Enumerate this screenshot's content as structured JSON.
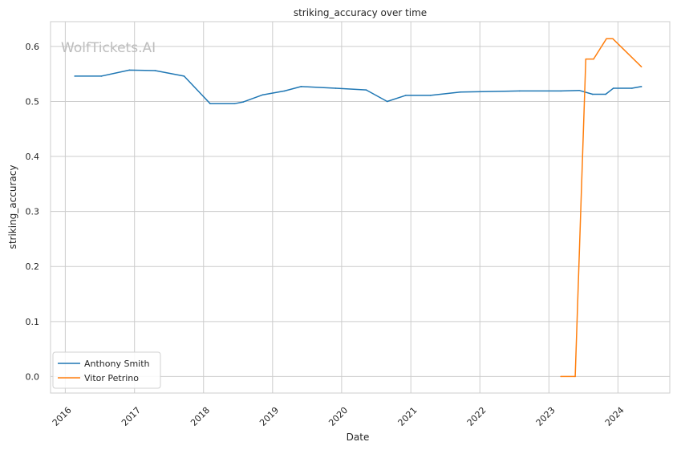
{
  "watermark": "WolfTickets.AI",
  "chart_data": {
    "type": "line",
    "title": "striking_accuracy over time",
    "xlabel": "Date",
    "ylabel": "striking_accuracy",
    "x_ticks": [
      "2016",
      "2017",
      "2018",
      "2019",
      "2020",
      "2021",
      "2022",
      "2023",
      "2024"
    ],
    "y_ticks": [
      "0.0",
      "0.1",
      "0.2",
      "0.3",
      "0.4",
      "0.5",
      "0.6"
    ],
    "xlim": [
      "2015-10-15",
      "2024-10-01"
    ],
    "ylim": [
      -0.03,
      0.645
    ],
    "grid": true,
    "legend_position": "bottom-left",
    "series": [
      {
        "name": "Anthony Smith",
        "color": "#1f77b4",
        "points": [
          [
            "2016-02-20",
            0.546
          ],
          [
            "2016-07-10",
            0.546
          ],
          [
            "2016-12-05",
            0.557
          ],
          [
            "2017-04-20",
            0.556
          ],
          [
            "2017-09-20",
            0.546
          ],
          [
            "2018-02-05",
            0.496
          ],
          [
            "2018-06-15",
            0.496
          ],
          [
            "2018-07-30",
            0.499
          ],
          [
            "2018-11-10",
            0.512
          ],
          [
            "2019-03-05",
            0.519
          ],
          [
            "2019-06-01",
            0.527
          ],
          [
            "2019-12-01",
            0.524
          ],
          [
            "2020-05-10",
            0.521
          ],
          [
            "2020-08-29",
            0.5
          ],
          [
            "2020-12-05",
            0.511
          ],
          [
            "2021-04-15",
            0.511
          ],
          [
            "2021-09-20",
            0.517
          ],
          [
            "2022-07-30",
            0.519
          ],
          [
            "2023-03-05",
            0.519
          ],
          [
            "2023-06-10",
            0.52
          ],
          [
            "2023-08-20",
            0.513
          ],
          [
            "2023-10-28",
            0.513
          ],
          [
            "2023-12-08",
            0.524
          ],
          [
            "2024-03-15",
            0.524
          ],
          [
            "2024-05-04",
            0.527
          ]
        ]
      },
      {
        "name": "Vitor Petrino",
        "color": "#ff7f0e",
        "points": [
          [
            "2023-03-05",
            0.0
          ],
          [
            "2023-05-20",
            0.0
          ],
          [
            "2023-07-15",
            0.577
          ],
          [
            "2023-08-25",
            0.577
          ],
          [
            "2023-11-01",
            0.614
          ],
          [
            "2023-12-05",
            0.614
          ],
          [
            "2024-05-04",
            0.563
          ]
        ]
      }
    ]
  }
}
